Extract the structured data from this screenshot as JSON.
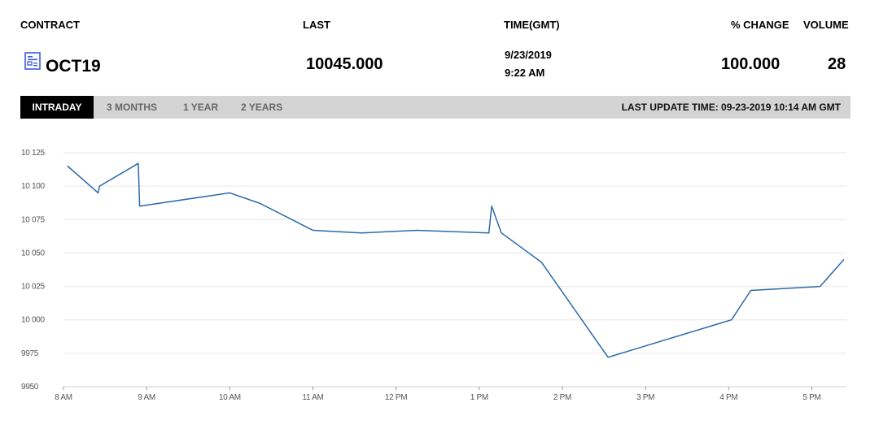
{
  "header": {
    "contract_label": "CONTRACT",
    "last_label": "LAST",
    "time_label": "TIME(GMT)",
    "change_label": "% CHANGE",
    "volume_label": "VOLUME"
  },
  "row": {
    "contract": "OCT19",
    "last": "10045.000",
    "date": "9/23/2019",
    "time": "9:22 AM",
    "change": "100.000",
    "volume": "28",
    "icon": "contract-document-icon"
  },
  "tabs": [
    "INTRADAY",
    "3 MONTHS",
    "1 YEAR",
    "2 YEARS"
  ],
  "active_tab": "INTRADAY",
  "last_update": "LAST UPDATE TIME: 09-23-2019 10:14 AM GMT",
  "colors": {
    "line": "#2c6aa8",
    "grid": "#e6e6e6",
    "tabbar": "#d4d4d4",
    "active_tab": "#000000",
    "icon": "#3a5bd9"
  },
  "chart_data": {
    "type": "line",
    "title": "",
    "xlabel": "",
    "ylabel": "",
    "ylim": [
      9950,
      10125
    ],
    "yticks": [
      9950,
      9975,
      10000,
      10025,
      10050,
      10075,
      10100,
      10125
    ],
    "ytick_labels": [
      "9950",
      "9975",
      "10 000",
      "10 025",
      "10 050",
      "10 075",
      "10 100",
      "10 125"
    ],
    "xlim": [
      "08:00",
      "17:25"
    ],
    "xticks": [
      "08:00",
      "09:00",
      "10:00",
      "11:00",
      "12:00",
      "13:00",
      "14:00",
      "15:00",
      "16:00",
      "17:00"
    ],
    "xtick_labels": [
      "8 AM",
      "9 AM",
      "10 AM",
      "11 AM",
      "12 PM",
      "1 PM",
      "2 PM",
      "3 PM",
      "4 PM",
      "5 PM"
    ],
    "grid": true,
    "series": [
      {
        "x": [
          "08:03",
          "08:25",
          "08:26",
          "08:54",
          "08:55",
          "10:00",
          "10:22",
          "11:00",
          "11:35",
          "12:15",
          "13:07",
          "13:09",
          "13:16",
          "13:45",
          "14:33",
          "16:02",
          "16:16",
          "17:06",
          "17:23"
        ],
        "y": [
          10115,
          10095,
          10100,
          10117,
          10085,
          10095,
          10087,
          10067,
          10065,
          10067,
          10065,
          10085,
          10065,
          10043,
          9972,
          10000,
          10022,
          10025,
          10045
        ]
      }
    ]
  }
}
